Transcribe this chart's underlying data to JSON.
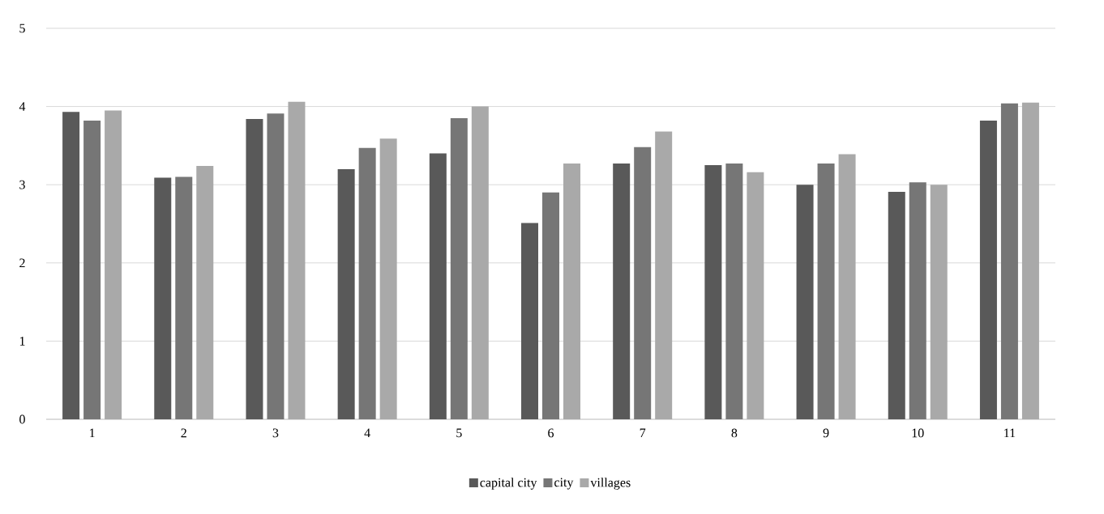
{
  "chart_data": {
    "type": "bar",
    "categories": [
      "1",
      "2",
      "3",
      "4",
      "5",
      "6",
      "7",
      "8",
      "9",
      "10",
      "11"
    ],
    "series": [
      {
        "name": "capital city",
        "color": "#595959",
        "values": [
          3.93,
          3.09,
          3.84,
          3.2,
          3.4,
          2.51,
          3.27,
          3.25,
          3.0,
          2.91,
          3.82
        ]
      },
      {
        "name": "city",
        "color": "#767676",
        "values": [
          3.82,
          3.1,
          3.91,
          3.47,
          3.85,
          2.9,
          3.48,
          3.27,
          3.27,
          3.03,
          4.04
        ]
      },
      {
        "name": "villages",
        "color": "#a9a9a9",
        "values": [
          3.95,
          3.24,
          4.06,
          3.59,
          4.0,
          3.27,
          3.68,
          3.16,
          3.39,
          3.0,
          4.05
        ]
      }
    ],
    "ylim": [
      0,
      5
    ],
    "yticks": [
      0,
      1,
      2,
      3,
      4,
      5
    ],
    "grid": "y",
    "legend": "bottom"
  }
}
